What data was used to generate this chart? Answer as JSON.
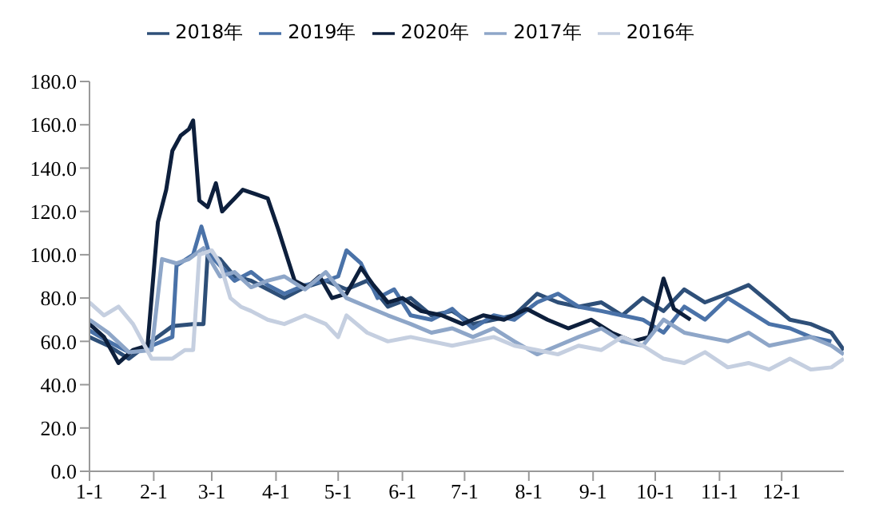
{
  "chart_data": {
    "type": "line",
    "legend": "top",
    "grid": false,
    "marker": "none",
    "line_style": "solid",
    "xlim": [
      "--01-01",
      "--12-31"
    ],
    "xticks": [
      {
        "value": "--01-01",
        "label": "1-1"
      },
      {
        "value": "--02-01",
        "label": "2-1"
      },
      {
        "value": "--03-01",
        "label": "3-1"
      },
      {
        "value": "--04-01",
        "label": "4-1"
      },
      {
        "value": "--05-01",
        "label": "5-1"
      },
      {
        "value": "--06-01",
        "label": "6-1"
      },
      {
        "value": "--07-01",
        "label": "7-1"
      },
      {
        "value": "--08-01",
        "label": "8-1"
      },
      {
        "value": "--09-01",
        "label": "9-1"
      },
      {
        "value": "--10-01",
        "label": "10-1"
      },
      {
        "value": "--11-01",
        "label": "11-1"
      },
      {
        "value": "--12-01",
        "label": "12-1"
      }
    ],
    "ylim": [
      0,
      180
    ],
    "yticks": [
      {
        "value": 0,
        "label": "0.0"
      },
      {
        "value": 20,
        "label": "20.0"
      },
      {
        "value": 40,
        "label": "40.0"
      },
      {
        "value": 60,
        "label": "60.0"
      },
      {
        "value": 80,
        "label": "80.0"
      },
      {
        "value": 100,
        "label": "100.0"
      },
      {
        "value": 120,
        "label": "120.0"
      },
      {
        "value": 140,
        "label": "140.0"
      },
      {
        "value": 160,
        "label": "160.0"
      },
      {
        "value": 180,
        "label": "180.0"
      }
    ],
    "series": [
      {
        "name": "2018年",
        "color": "#2e4f78",
        "x": [
          "--01-01",
          "--01-10",
          "--01-20",
          "--01-31",
          "--02-10",
          "--02-20",
          "--02-25",
          "--02-27",
          "--03-05",
          "--03-12",
          "--03-20",
          "--03-28",
          "--04-05",
          "--04-15",
          "--04-25",
          "--05-05",
          "--05-15",
          "--05-25",
          "--06-05",
          "--06-15",
          "--06-25",
          "--07-05",
          "--07-15",
          "--07-25",
          "--08-05",
          "--08-15",
          "--08-25",
          "--09-05",
          "--09-15",
          "--09-25",
          "--10-05",
          "--10-15",
          "--10-25",
          "--11-05",
          "--11-15",
          "--11-25",
          "--12-05",
          "--12-15",
          "--12-25",
          "--12-31"
        ],
        "values": [
          62,
          58,
          52,
          60,
          67,
          68,
          68,
          100,
          98,
          90,
          88,
          84,
          80,
          85,
          88,
          84,
          88,
          76,
          80,
          72,
          74,
          68,
          70,
          72,
          82,
          78,
          76,
          78,
          72,
          80,
          74,
          84,
          78,
          82,
          86,
          78,
          70,
          68,
          64,
          56
        ]
      },
      {
        "name": "2019年",
        "color": "#4a72a8",
        "x": [
          "--01-01",
          "--01-10",
          "--01-20",
          "--01-31",
          "--02-05",
          "--02-10",
          "--02-12",
          "--02-20",
          "--02-24",
          "--02-28",
          "--03-05",
          "--03-12",
          "--03-20",
          "--03-28",
          "--04-05",
          "--04-15",
          "--04-25",
          "--05-01",
          "--05-05",
          "--05-12",
          "--05-20",
          "--05-28",
          "--06-05",
          "--06-15",
          "--06-25",
          "--07-05",
          "--07-15",
          "--07-25",
          "--08-05",
          "--08-15",
          "--08-25",
          "--09-05",
          "--09-15",
          "--09-25",
          "--10-05",
          "--10-15",
          "--10-25",
          "--11-05",
          "--11-15",
          "--11-25",
          "--12-05",
          "--12-15",
          "--12-25"
        ],
        "values": [
          65,
          60,
          55,
          58,
          60,
          62,
          95,
          100,
          113,
          100,
          95,
          88,
          92,
          86,
          82,
          86,
          88,
          90,
          102,
          96,
          80,
          84,
          72,
          70,
          75,
          66,
          72,
          70,
          78,
          82,
          76,
          74,
          72,
          70,
          64,
          76,
          70,
          80,
          74,
          68,
          66,
          62,
          60
        ]
      },
      {
        "name": "2020年",
        "color": "#0d1f3c",
        "x": [
          "--01-01",
          "--01-08",
          "--01-15",
          "--01-22",
          "--01-29",
          "--02-03",
          "--02-07",
          "--02-10",
          "--02-14",
          "--02-18",
          "--02-20",
          "--02-23",
          "--02-27",
          "--03-03",
          "--03-06",
          "--03-12",
          "--03-16",
          "--03-22",
          "--03-28",
          "--04-02",
          "--04-06",
          "--04-10",
          "--04-16",
          "--04-22",
          "--04-28",
          "--05-05",
          "--05-12",
          "--05-18",
          "--05-25",
          "--06-01",
          "--06-10",
          "--06-20",
          "--06-30",
          "--07-10",
          "--07-20",
          "--07-31",
          "--08-10",
          "--08-20",
          "--08-31",
          "--09-10",
          "--09-20",
          "--09-28",
          "--10-05",
          "--10-10",
          "--10-18"
        ],
        "values": [
          68,
          62,
          50,
          56,
          58,
          115,
          130,
          148,
          155,
          158,
          162,
          125,
          122,
          133,
          120,
          126,
          130,
          128,
          126,
          112,
          100,
          88,
          85,
          90,
          80,
          82,
          94,
          86,
          78,
          80,
          74,
          72,
          68,
          72,
          70,
          75,
          70,
          66,
          70,
          64,
          60,
          62,
          89,
          75,
          70
        ]
      },
      {
        "name": "2017年",
        "color": "#8ea6c8",
        "x": [
          "--01-01",
          "--01-10",
          "--01-20",
          "--01-31",
          "--02-05",
          "--02-12",
          "--02-18",
          "--02-25",
          "--03-05",
          "--03-12",
          "--03-20",
          "--03-28",
          "--04-05",
          "--04-15",
          "--04-25",
          "--05-05",
          "--05-15",
          "--05-25",
          "--06-05",
          "--06-15",
          "--06-25",
          "--07-05",
          "--07-15",
          "--07-25",
          "--08-05",
          "--08-15",
          "--08-25",
          "--09-05",
          "--09-15",
          "--09-25",
          "--10-05",
          "--10-15",
          "--10-25",
          "--11-05",
          "--11-15",
          "--11-25",
          "--12-05",
          "--12-15",
          "--12-25",
          "--12-31"
        ],
        "values": [
          70,
          64,
          55,
          56,
          98,
          96,
          98,
          103,
          90,
          92,
          85,
          88,
          90,
          84,
          92,
          80,
          76,
          72,
          68,
          64,
          66,
          62,
          66,
          60,
          54,
          58,
          62,
          66,
          60,
          58,
          70,
          64,
          62,
          60,
          64,
          58,
          60,
          62,
          58,
          54
        ]
      },
      {
        "name": "2016年",
        "color": "#c5cfe0",
        "x": [
          "--01-01",
          "--01-08",
          "--01-15",
          "--01-22",
          "--01-31",
          "--02-10",
          "--02-16",
          "--02-20",
          "--02-23",
          "--03-01",
          "--03-05",
          "--03-10",
          "--03-15",
          "--03-20",
          "--03-28",
          "--04-05",
          "--04-15",
          "--04-25",
          "--05-01",
          "--05-05",
          "--05-15",
          "--05-25",
          "--06-05",
          "--06-15",
          "--06-25",
          "--07-05",
          "--07-15",
          "--07-25",
          "--08-05",
          "--08-15",
          "--08-25",
          "--09-05",
          "--09-15",
          "--09-25",
          "--10-05",
          "--10-15",
          "--10-25",
          "--11-05",
          "--11-15",
          "--11-25",
          "--12-05",
          "--12-15",
          "--12-25",
          "--12-31"
        ],
        "values": [
          78,
          72,
          76,
          68,
          52,
          52,
          56,
          56,
          100,
          102,
          96,
          80,
          76,
          74,
          70,
          68,
          72,
          68,
          62,
          72,
          64,
          60,
          62,
          60,
          58,
          60,
          62,
          58,
          56,
          54,
          58,
          56,
          62,
          58,
          52,
          50,
          55,
          48,
          50,
          47,
          52,
          47,
          48,
          52
        ]
      }
    ]
  }
}
